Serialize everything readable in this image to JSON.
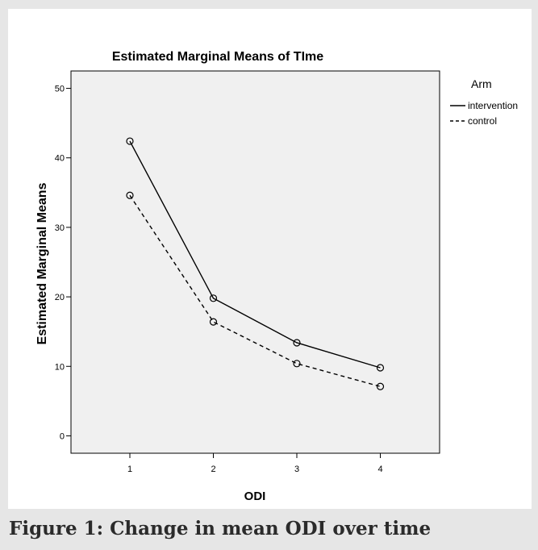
{
  "caption": "Figure 1: Change in mean ODI over time",
  "chart_data": {
    "type": "line",
    "title": "Estimated Marginal Means of TIme",
    "xlabel": "ODI",
    "ylabel": "Estimated Marginal Means",
    "categories": [
      "1",
      "2",
      "3",
      "4"
    ],
    "yticks": [
      "0",
      "10",
      "20",
      "30",
      "40",
      "50"
    ],
    "ylim": [
      -2.5,
      52.5
    ],
    "legend_title": "Arm",
    "legend_position": "right",
    "grid": false,
    "plot_background": "#f0f0f0",
    "series": [
      {
        "name": "intervention",
        "values": [
          42.4,
          19.8,
          13.4,
          9.8
        ],
        "line_style": "solid",
        "marker": "circle-open",
        "color": "#000000"
      },
      {
        "name": "control",
        "values": [
          34.6,
          16.4,
          10.4,
          7.1
        ],
        "line_style": "dashed",
        "marker": "circle-open",
        "color": "#000000"
      }
    ]
  }
}
